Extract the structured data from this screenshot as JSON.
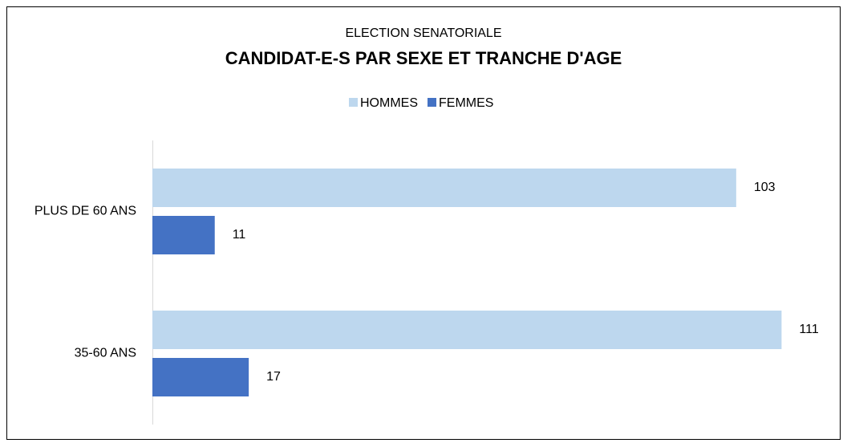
{
  "chart_data": {
    "type": "barh",
    "subtitle": "ELECTION SENATORIALE",
    "title": "CANDIDAT-E-S PAR SEXE ET TRANCHE D'AGE",
    "categories": [
      "PLUS DE 60 ANS",
      "35-60 ANS"
    ],
    "series": [
      {
        "name": "HOMMES",
        "color": "#bdd7ee",
        "values": [
          103,
          111
        ]
      },
      {
        "name": "FEMMES",
        "color": "#4472c4",
        "values": [
          11,
          17
        ]
      }
    ],
    "xlim": [
      0,
      120
    ],
    "legend": "top"
  }
}
